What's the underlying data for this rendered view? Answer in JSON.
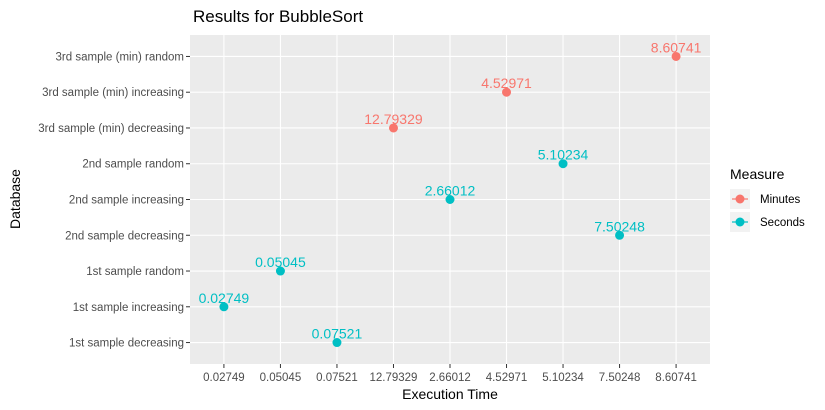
{
  "chart_data": {
    "type": "scatter",
    "title": "Results for BubbleSort",
    "xlabel": "Execution Time",
    "ylabel": "Database",
    "grid": true,
    "x_categories": [
      "0.02749",
      "0.05045",
      "0.07521",
      "12.79329",
      "2.66012",
      "4.52971",
      "5.10234",
      "7.50248",
      "8.60741"
    ],
    "y_categories": [
      "1st sample decreasing",
      "1st sample increasing",
      "1st sample random",
      "2nd sample decreasing",
      "2nd sample increasing",
      "2nd sample random",
      "3rd sample (min) decreasing",
      "3rd sample (min) increasing",
      "3rd sample (min) random"
    ],
    "legend": {
      "title": "Measure",
      "position": "right",
      "entries": [
        {
          "name": "Minutes",
          "color": "#F8766D"
        },
        {
          "name": "Seconds",
          "color": "#00BFC4"
        }
      ]
    },
    "series": [
      {
        "name": "Minutes",
        "color": "#F8766D",
        "points": [
          {
            "x": "8.60741",
            "y": "3rd sample (min) random",
            "label": "8.60741"
          },
          {
            "x": "4.52971",
            "y": "3rd sample (min) increasing",
            "label": "4.52971"
          },
          {
            "x": "12.79329",
            "y": "3rd sample (min) decreasing",
            "label": "12.79329"
          }
        ]
      },
      {
        "name": "Seconds",
        "color": "#00BFC4",
        "points": [
          {
            "x": "5.10234",
            "y": "2nd sample random",
            "label": "5.10234"
          },
          {
            "x": "2.66012",
            "y": "2nd sample increasing",
            "label": "2.66012"
          },
          {
            "x": "7.50248",
            "y": "2nd sample decreasing",
            "label": "7.50248"
          },
          {
            "x": "0.05045",
            "y": "1st sample random",
            "label": "0.05045"
          },
          {
            "x": "0.02749",
            "y": "1st sample increasing",
            "label": "0.02749"
          },
          {
            "x": "0.07521",
            "y": "1st sample decreasing",
            "label": "0.07521"
          }
        ]
      }
    ],
    "panel_background": "#EBEBEB",
    "grid_color": "#FFFFFF"
  }
}
